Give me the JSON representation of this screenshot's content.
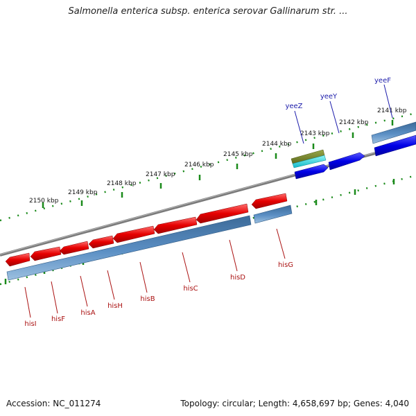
{
  "header": {
    "title": "Salmonella enterica subsp. enterica serovar Gallinarum str. ..."
  },
  "footer": {
    "accession": "Accession: NC_011274",
    "summary": "Topology: circular; Length: 4,658,697 bp; Genes: 4,040"
  },
  "colors": {
    "backbone": "#808080",
    "forward_gene": "#0000ee",
    "reverse_gene": "#ee0000",
    "cds_bar": "#4a7fb5",
    "tick": "#1a8a1a",
    "forward_label": "#1a1aaa",
    "reverse_label": "#aa1111"
  },
  "tick_labels": [
    {
      "id": "2150",
      "text": "2150 kbp"
    },
    {
      "id": "2149",
      "text": "2149 kbp"
    },
    {
      "id": "2148",
      "text": "2148 kbp"
    },
    {
      "id": "2147",
      "text": "2147 kbp"
    },
    {
      "id": "2146",
      "text": "2146 kbp"
    },
    {
      "id": "2145",
      "text": "2145 kbp"
    },
    {
      "id": "2144",
      "text": "2144 kbp"
    },
    {
      "id": "2143",
      "text": "2143 kbp"
    },
    {
      "id": "2142",
      "text": "2142 kbp"
    },
    {
      "id": "2141",
      "text": "2141 kbp"
    }
  ],
  "genes_reverse": [
    {
      "id": "hisI",
      "label": "hisI"
    },
    {
      "id": "hisF",
      "label": "hisF"
    },
    {
      "id": "hisA",
      "label": "hisA"
    },
    {
      "id": "hisH",
      "label": "hisH"
    },
    {
      "id": "hisB",
      "label": "hisB"
    },
    {
      "id": "hisC",
      "label": "hisC"
    },
    {
      "id": "hisD",
      "label": "hisD"
    },
    {
      "id": "hisG",
      "label": "hisG"
    }
  ],
  "genes_forward": [
    {
      "id": "yeeZ",
      "label": "yeeZ"
    },
    {
      "id": "yeeY",
      "label": "yeeY"
    },
    {
      "id": "yeeF",
      "label": "yeeF"
    }
  ]
}
